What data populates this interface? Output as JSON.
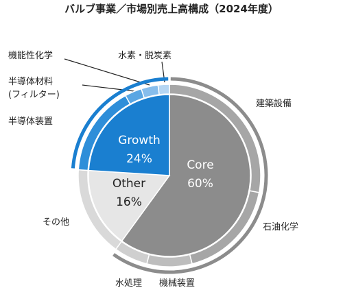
{
  "chart_data": {
    "type": "pie",
    "title": "バルブ事業／市場別売上高構成（2024年度）",
    "inner": {
      "categories": [
        "Core",
        "Other",
        "Growth"
      ],
      "values": [
        60,
        16,
        24
      ],
      "value_labels": [
        "60%",
        "16%",
        "24%"
      ],
      "colors": [
        "#8c8c8c",
        "#e6e6e6",
        "#1a7fd0"
      ],
      "label_colors": [
        "#ffffff",
        "#222222",
        "#ffffff"
      ],
      "brackets": [
        true,
        false,
        true
      ]
    },
    "outer": {
      "categories": [
        "建築設備",
        "石油化学",
        "機械装置",
        "水処理",
        "その他",
        "半導体装置",
        "半導体材料\n(フィルター)",
        "機能性化学",
        "水素・脱炭素"
      ],
      "values": [
        28,
        18,
        8,
        6,
        16,
        16,
        3,
        3,
        2
      ],
      "colors": [
        "#a6a6a6",
        "#a6a6a6",
        "#bdbdbd",
        "#cfcfcf",
        "#d9d9d9",
        "#2e8ed9",
        "#5aa6e3",
        "#86bdec",
        "#b5d6f3"
      ]
    }
  }
}
